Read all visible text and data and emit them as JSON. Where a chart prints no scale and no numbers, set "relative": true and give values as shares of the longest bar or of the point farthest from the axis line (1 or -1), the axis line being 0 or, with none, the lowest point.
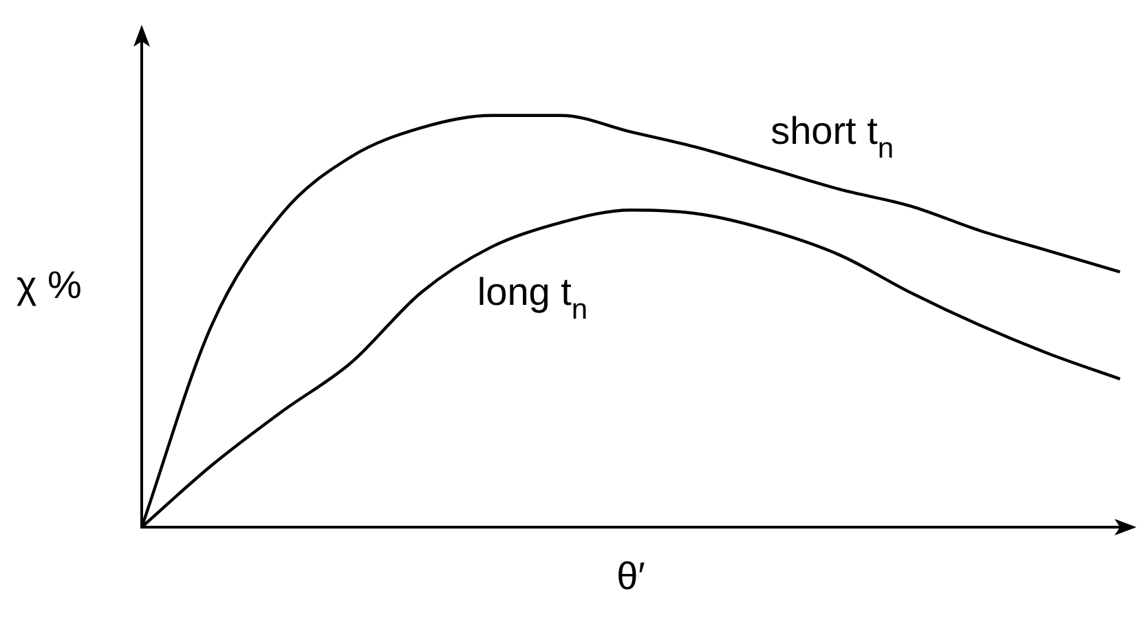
{
  "chart_data": {
    "type": "line",
    "xlabel": "θ′",
    "ylabel": "χ %",
    "relative": true,
    "categories": [
      null,
      null,
      null,
      null,
      null,
      null,
      null,
      null,
      null,
      null,
      null,
      null,
      null,
      null,
      null
    ],
    "series": [
      {
        "name": "short t$_{n}$",
        "color": "#000000",
        "values": [
          0,
          0.49,
          0.76,
          0.9,
          0.97,
          1.0,
          1.0,
          0.96,
          0.92,
          0.87,
          0.82,
          0.78,
          0.72,
          0.67,
          0.62
        ]
      },
      {
        "name": "long t$_{n}$",
        "color": "#000000",
        "values": [
          0,
          0.15,
          0.28,
          0.4,
          0.57,
          0.68,
          0.74,
          0.77,
          0.76,
          0.72,
          0.66,
          0.57,
          0.49,
          0.42,
          0.36
        ]
      }
    ],
    "legend": false,
    "grid": false,
    "marker": "none",
    "line_style": "solid"
  }
}
